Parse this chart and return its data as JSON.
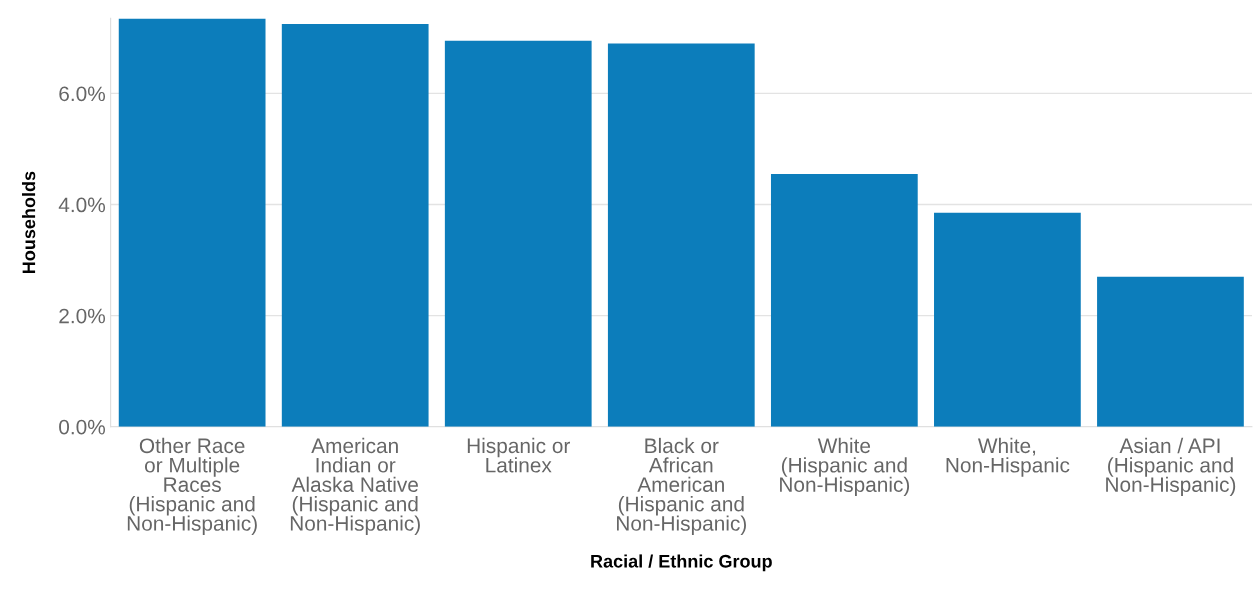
{
  "chart_data": {
    "type": "bar",
    "categories": [
      "Other Race\nor Multiple\nRaces\n(Hispanic and\nNon-Hispanic)",
      "American\nIndian or\nAlaska Native\n(Hispanic and\nNon-Hispanic)",
      "Hispanic or\nLatinex",
      "Black or\nAfrican\nAmerican\n(Hispanic and\nNon-Hispanic)",
      "White\n(Hispanic and\nNon-Hispanic)",
      "White,\nNon-Hispanic",
      "Asian / API\n(Hispanic and\nNon-Hispanic)"
    ],
    "values": [
      7.35,
      7.25,
      6.95,
      6.9,
      4.55,
      3.85,
      2.7
    ],
    "color": "#0c7dbb",
    "xlabel": "Racial / Ethnic Group",
    "ylabel": "Households",
    "ylim": [
      0,
      7.35
    ],
    "yticks": [
      {
        "value": 0,
        "label": "0.0%"
      },
      {
        "value": 2,
        "label": "2.0%"
      },
      {
        "value": 4,
        "label": "4.0%"
      },
      {
        "value": 6,
        "label": "6.0%"
      }
    ],
    "grid": "y"
  }
}
